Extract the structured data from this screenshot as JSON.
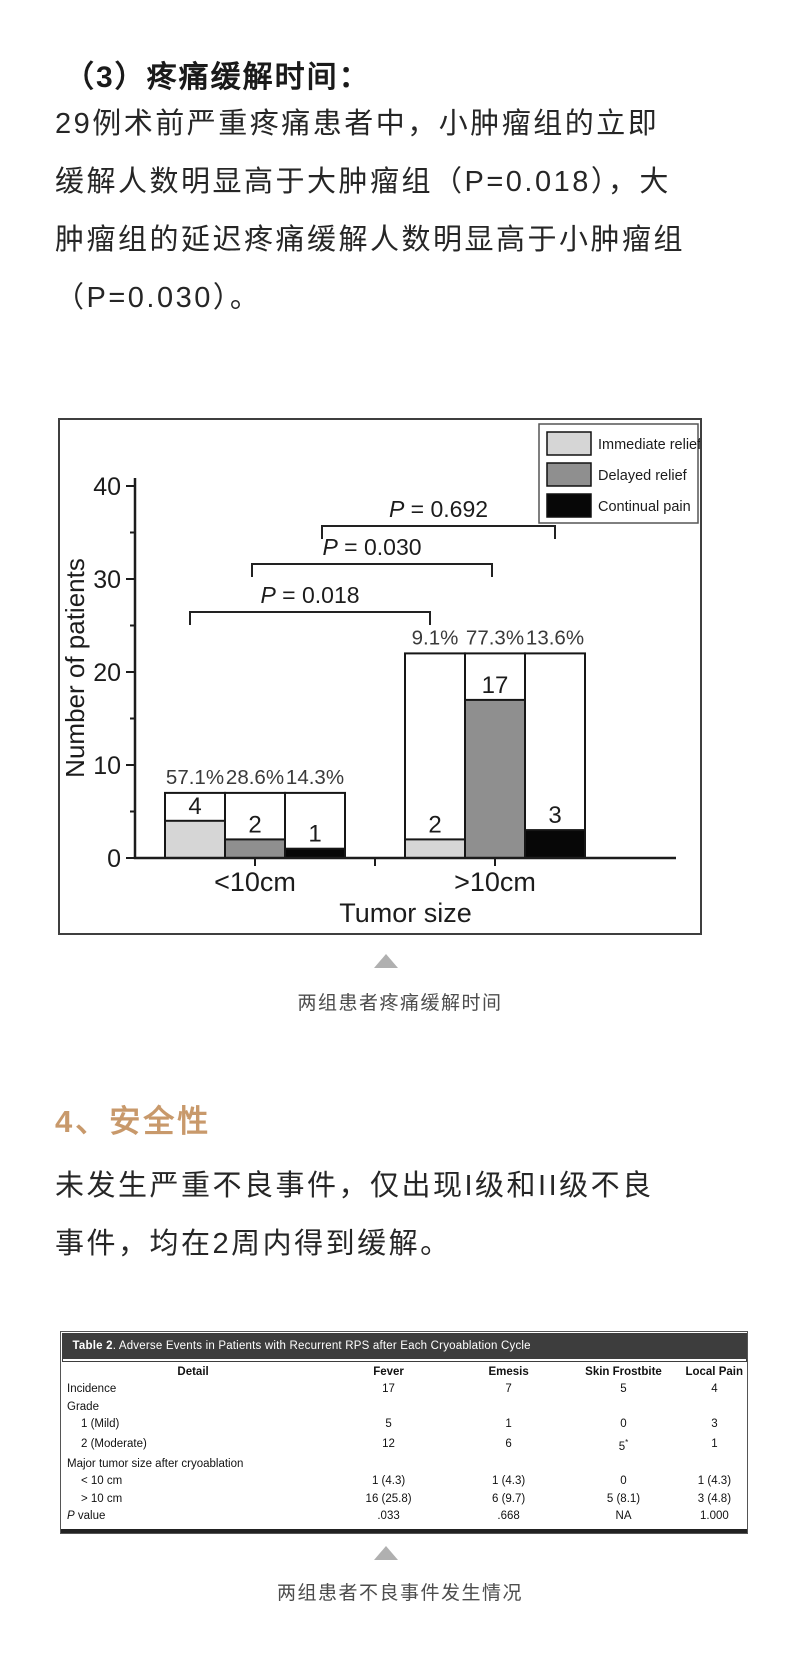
{
  "section3": {
    "heading": "（3）疼痛缓解时间：",
    "paragraph_lines": [
      "29例术前严重疼痛患者中，小肿瘤组的立即",
      "缓解人数明显高于大肿瘤组（P=0.018），大",
      "肿瘤组的延迟疼痛缓解人数明显高于小肿瘤组",
      "（P=0.030）。"
    ]
  },
  "figure_caption": "两组患者疼痛缓解时间",
  "section4": {
    "heading": "4、安全性",
    "heading_color": "#c8996b",
    "paragraph_lines": [
      "未发生严重不良事件，仅出现I级和II级不良",
      "事件，均在2周内得到缓解。"
    ]
  },
  "chart_data": {
    "type": "bar",
    "title": "",
    "categories": [
      "<10cm",
      ">10cm"
    ],
    "series": [
      {
        "name": "Immediate relief",
        "color": "#d6d6d6",
        "values": [
          4,
          2
        ],
        "percent_labels": [
          "57.1%",
          "9.1%"
        ]
      },
      {
        "name": "Delayed relief",
        "color": "#8f8f8f",
        "values": [
          2,
          17
        ],
        "percent_labels": [
          "28.6%",
          "77.3%"
        ]
      },
      {
        "name": "Continual pain",
        "color": "#070707",
        "values": [
          1,
          3
        ],
        "percent_labels": [
          "14.3%",
          "13.6%"
        ]
      }
    ],
    "group_totals": [
      7,
      22
    ],
    "xlabel": "Tumor size",
    "ylabel": "Number of patients",
    "ylim": [
      0,
      40
    ],
    "yticks_major": [
      0,
      10,
      20,
      30,
      40
    ],
    "yticks_minor": [
      5,
      15,
      25,
      35
    ],
    "legend_position": "top-right",
    "significance": [
      {
        "label": "P = 0.018"
      },
      {
        "label": "P = 0.030"
      },
      {
        "label": "P = 0.692"
      }
    ]
  },
  "table": {
    "title_label": "Table 2",
    "title_rest": ". Adverse Events in Patients with Recurrent RPS after Each Cryoablation Cycle",
    "columns": [
      "Detail",
      "Fever",
      "Emesis",
      "Skin Frostbite",
      "Local Pain"
    ],
    "rows": [
      {
        "cells": [
          "Incidence",
          "17",
          "7",
          "5",
          "4"
        ],
        "indent": false,
        "pitalic": false
      },
      {
        "cells": [
          "Grade",
          "",
          "",
          "",
          ""
        ],
        "indent": false,
        "pitalic": false
      },
      {
        "cells": [
          "1 (Mild)",
          "5",
          "1",
          "0",
          "3"
        ],
        "indent": true,
        "pitalic": false
      },
      {
        "cells": [
          "2 (Moderate)",
          "12",
          "6",
          "5*",
          "1"
        ],
        "indent": true,
        "pitalic": false
      },
      {
        "cells": [
          "Major tumor size after cryoablation",
          "",
          "",
          "",
          ""
        ],
        "indent": false,
        "pitalic": false
      },
      {
        "cells": [
          "< 10 cm",
          "1 (4.3)",
          "1 (4.3)",
          "0",
          "1 (4.3)"
        ],
        "indent": true,
        "pitalic": false
      },
      {
        "cells": [
          "> 10 cm",
          "16 (25.8)",
          "6 (9.7)",
          "5 (8.1)",
          "3 (4.8)"
        ],
        "indent": true,
        "pitalic": false
      },
      {
        "cells": [
          "P value",
          ".033",
          ".668",
          "NA",
          "1.000"
        ],
        "indent": false,
        "pitalic": true
      }
    ]
  },
  "table_caption": "两组患者不良事件发生情况"
}
